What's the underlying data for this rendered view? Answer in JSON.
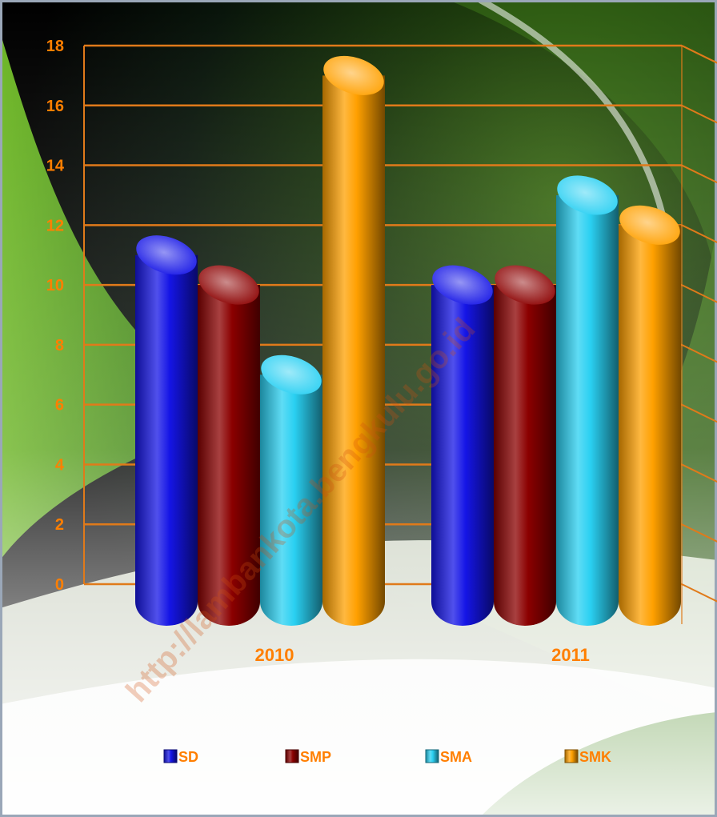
{
  "colors": {
    "axis_text": "#ff7f00",
    "grid": "#e07a1a",
    "SD": "#1515e6",
    "SMP": "#8b0000",
    "SMA": "#2ad0f2",
    "SMK": "#ffa000"
  },
  "watermark": "http://lambankota.bengkulu.go.id",
  "chart_data": {
    "type": "bar",
    "title": "",
    "xlabel": "",
    "ylabel": "",
    "ylim": [
      0,
      18
    ],
    "yticks": [
      0,
      2,
      4,
      6,
      8,
      10,
      12,
      14,
      16,
      18
    ],
    "categories": [
      "2010",
      "2011"
    ],
    "series": [
      {
        "name": "SD",
        "values": [
          11,
          10
        ]
      },
      {
        "name": "SMP",
        "values": [
          10,
          10
        ]
      },
      {
        "name": "SMA",
        "values": [
          7,
          13
        ]
      },
      {
        "name": "SMK",
        "values": [
          17,
          12
        ]
      }
    ],
    "grid": true,
    "legend_position": "bottom"
  }
}
